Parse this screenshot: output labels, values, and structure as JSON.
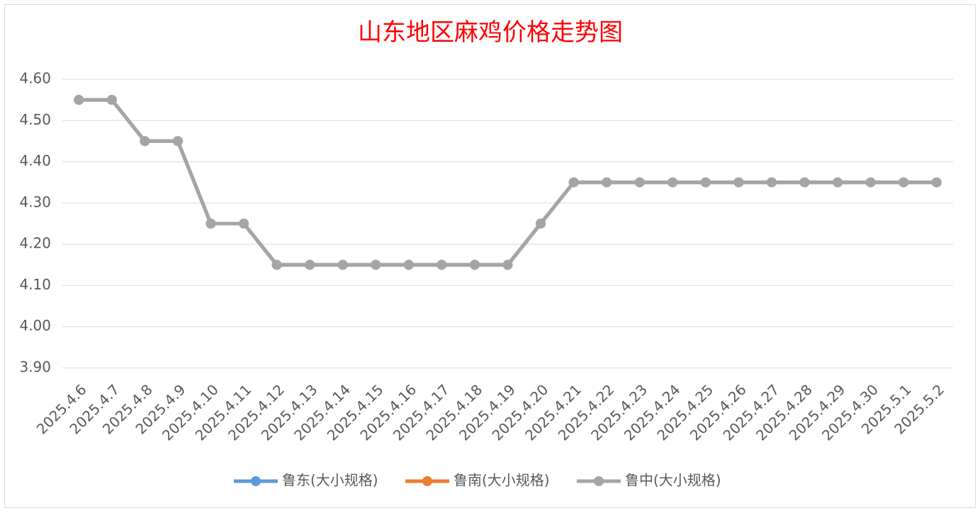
{
  "chart_data": {
    "type": "line",
    "title": "山东地区麻鸡价格走势图",
    "categories": [
      "2025.4.6",
      "2025.4.7",
      "2025.4.8",
      "2025.4.9",
      "2025.4.10",
      "2025.4.11",
      "2025.4.12",
      "2025.4.13",
      "2025.4.14",
      "2025.4.15",
      "2025.4.16",
      "2025.4.17",
      "2025.4.18",
      "2025.4.19",
      "2025.4.20",
      "2025.4.21",
      "2025.4.22",
      "2025.4.23",
      "2025.4.24",
      "2025.4.25",
      "2025.4.26",
      "2025.4.27",
      "2025.4.28",
      "2025.4.29",
      "2025.4.30",
      "2025.5.1",
      "2025.5.2"
    ],
    "series": [
      {
        "name": "鲁东(大小规格)",
        "color": "#5b9bd5",
        "values": [
          4.55,
          4.55,
          4.45,
          4.45,
          4.25,
          4.25,
          4.15,
          4.15,
          4.15,
          4.15,
          4.15,
          4.15,
          4.15,
          4.15,
          4.25,
          4.35,
          4.35,
          4.35,
          4.35,
          4.35,
          4.35,
          4.35,
          4.35,
          4.35,
          4.35,
          4.35,
          4.35
        ]
      },
      {
        "name": "鲁南(大小规格)",
        "color": "#ed7d31",
        "values": [
          4.55,
          4.55,
          4.45,
          4.45,
          4.25,
          4.25,
          4.15,
          4.15,
          4.15,
          4.15,
          4.15,
          4.15,
          4.15,
          4.15,
          4.25,
          4.35,
          4.35,
          4.35,
          4.35,
          4.35,
          4.35,
          4.35,
          4.35,
          4.35,
          4.35,
          4.35,
          4.35
        ]
      },
      {
        "name": "鲁中(大小规格)",
        "color": "#a5a5a5",
        "values": [
          4.55,
          4.55,
          4.45,
          4.45,
          4.25,
          4.25,
          4.15,
          4.15,
          4.15,
          4.15,
          4.15,
          4.15,
          4.15,
          4.15,
          4.25,
          4.35,
          4.35,
          4.35,
          4.35,
          4.35,
          4.35,
          4.35,
          4.35,
          4.35,
          4.35,
          4.35,
          4.35
        ]
      }
    ],
    "ylim": [
      3.9,
      4.6
    ],
    "yticks": [
      {
        "value": 3.9,
        "label": "3.90"
      },
      {
        "value": 4.0,
        "label": "4.00"
      },
      {
        "value": 4.1,
        "label": "4.10"
      },
      {
        "value": 4.2,
        "label": "4.20"
      },
      {
        "value": 4.3,
        "label": "4.30"
      },
      {
        "value": 4.4,
        "label": "4.40"
      },
      {
        "value": 4.5,
        "label": "4.50"
      },
      {
        "value": 4.6,
        "label": "4.60"
      }
    ],
    "grid": true,
    "legend": "bottom"
  }
}
